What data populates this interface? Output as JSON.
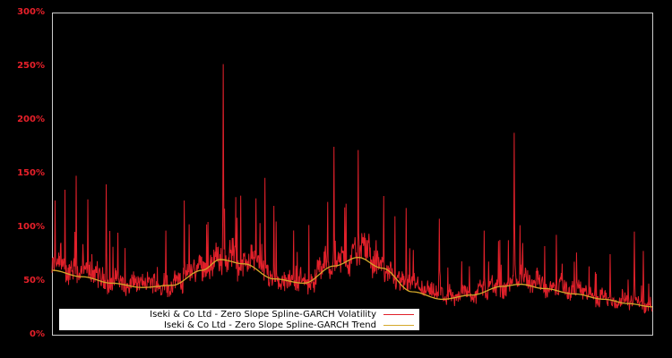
{
  "chart_data": {
    "type": "line",
    "title": "",
    "xlabel": "",
    "ylabel": "",
    "ylim": [
      0,
      300
    ],
    "y_ticks": [
      "0%",
      "50%",
      "100%",
      "150%",
      "200%",
      "250%",
      "300%"
    ],
    "y_tick_values": [
      0,
      50,
      100,
      150,
      200,
      250,
      300
    ],
    "x_ticks": [],
    "grid": false,
    "legend_position": "lower-left inside",
    "background": "#000000",
    "frame_color": "#cccccc",
    "tick_label_color": "#e8202a",
    "series": [
      {
        "name": "Iseki & Co Ltd - Zero Slope Spline-GARCH Volatility",
        "color": "#e0202a",
        "style": "noisy line",
        "baseline_follows_trend": true,
        "notable_spikes": [
          {
            "x": 0.005,
            "y": 125
          },
          {
            "x": 0.022,
            "y": 135
          },
          {
            "x": 0.04,
            "y": 148
          },
          {
            "x": 0.06,
            "y": 126
          },
          {
            "x": 0.09,
            "y": 140
          },
          {
            "x": 0.11,
            "y": 95
          },
          {
            "x": 0.19,
            "y": 97
          },
          {
            "x": 0.22,
            "y": 125
          },
          {
            "x": 0.26,
            "y": 105
          },
          {
            "x": 0.285,
            "y": 252
          },
          {
            "x": 0.3,
            "y": 90
          },
          {
            "x": 0.34,
            "y": 127
          },
          {
            "x": 0.355,
            "y": 146
          },
          {
            "x": 0.37,
            "y": 120
          },
          {
            "x": 0.47,
            "y": 175
          },
          {
            "x": 0.49,
            "y": 122
          },
          {
            "x": 0.51,
            "y": 172
          },
          {
            "x": 0.54,
            "y": 88
          },
          {
            "x": 0.59,
            "y": 118
          },
          {
            "x": 0.645,
            "y": 108
          },
          {
            "x": 0.72,
            "y": 97
          },
          {
            "x": 0.76,
            "y": 88
          },
          {
            "x": 0.77,
            "y": 188
          },
          {
            "x": 0.78,
            "y": 102
          },
          {
            "x": 0.84,
            "y": 93
          },
          {
            "x": 0.87,
            "y": 68
          },
          {
            "x": 0.93,
            "y": 75
          },
          {
            "x": 0.97,
            "y": 96
          },
          {
            "x": 0.985,
            "y": 78
          }
        ]
      },
      {
        "name": "Iseki & Co Ltd - Zero Slope Spline-GARCH Trend",
        "color": "#d4a82a",
        "x": [
          0.0,
          0.05,
          0.1,
          0.15,
          0.2,
          0.25,
          0.28,
          0.32,
          0.37,
          0.42,
          0.47,
          0.51,
          0.55,
          0.6,
          0.65,
          0.7,
          0.75,
          0.78,
          0.82,
          0.87,
          0.92,
          0.96,
          1.0
        ],
        "values": [
          60,
          54,
          48,
          44,
          46,
          60,
          70,
          66,
          52,
          48,
          64,
          72,
          62,
          40,
          33,
          37,
          45,
          47,
          43,
          38,
          33,
          29,
          26
        ]
      }
    ]
  },
  "legend": {
    "items": [
      {
        "label": "Iseki & Co Ltd - Zero Slope Spline-GARCH Volatility",
        "color": "#e0202a"
      },
      {
        "label": "Iseki & Co Ltd - Zero Slope Spline-GARCH Trend",
        "color": "#d4a82a"
      }
    ]
  }
}
